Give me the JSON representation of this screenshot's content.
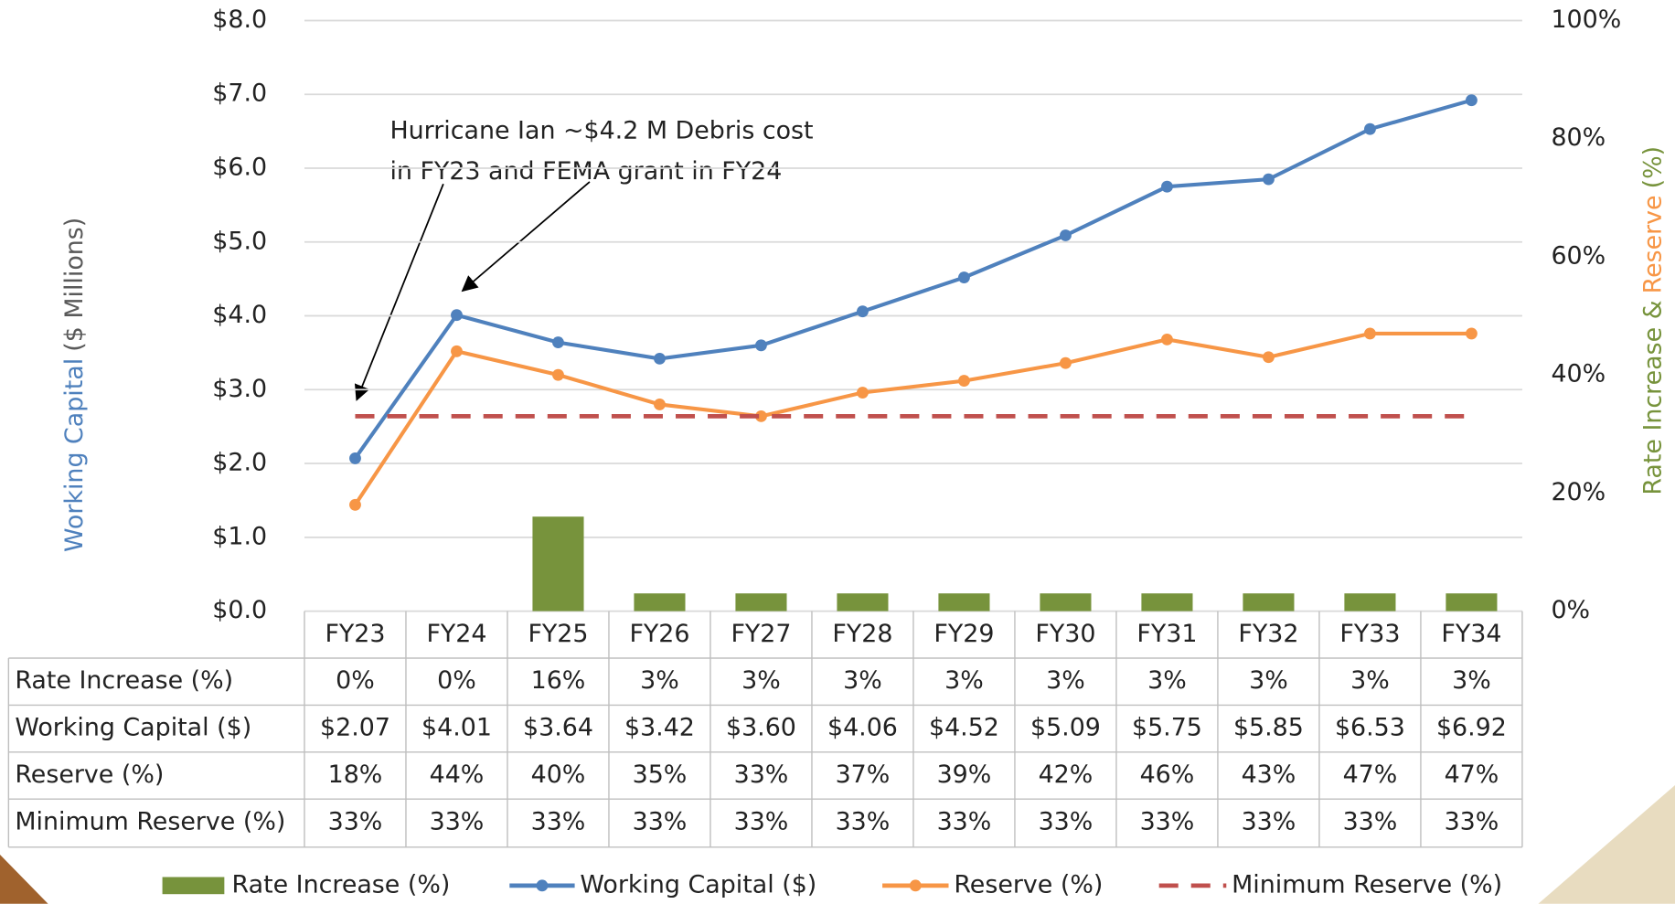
{
  "chart_data": {
    "type": "combo",
    "categories": [
      "FY23",
      "FY24",
      "FY25",
      "FY26",
      "FY27",
      "FY28",
      "FY29",
      "FY30",
      "FY31",
      "FY32",
      "FY33",
      "FY34"
    ],
    "series": [
      {
        "name": "Rate Increase (%)",
        "type": "bar",
        "axis": "y2",
        "color": "#77933c",
        "values": [
          0,
          0,
          16,
          3,
          3,
          3,
          3,
          3,
          3,
          3,
          3,
          3
        ],
        "value_labels": [
          "0%",
          "0%",
          "16%",
          "3%",
          "3%",
          "3%",
          "3%",
          "3%",
          "3%",
          "3%",
          "3%",
          "3%"
        ]
      },
      {
        "name": "Working Capital ($)",
        "type": "line",
        "color": "#4f81bd",
        "values": [
          2.07,
          4.01,
          3.64,
          3.42,
          3.6,
          4.06,
          4.52,
          5.09,
          5.75,
          5.85,
          6.53,
          6.92
        ],
        "value_labels": [
          "$2.07",
          "$4.01",
          "$3.64",
          "$3.42",
          "$3.60",
          "$4.06",
          "$4.52",
          "$5.09",
          "$5.75",
          "$5.85",
          "$6.53",
          "$6.92"
        ]
      },
      {
        "name": "Reserve (%)",
        "type": "line",
        "axis": "y2",
        "color": "#f79646",
        "values": [
          18,
          44,
          40,
          35,
          33,
          37,
          39,
          42,
          46,
          43,
          47,
          47
        ],
        "value_labels": [
          "18%",
          "44%",
          "40%",
          "35%",
          "33%",
          "37%",
          "39%",
          "42%",
          "46%",
          "43%",
          "47%",
          "47%"
        ]
      },
      {
        "name": "Minimum Reserve (%)",
        "type": "line",
        "axis": "y2",
        "color": "#c0504d",
        "dashed": true,
        "values": [
          33,
          33,
          33,
          33,
          33,
          33,
          33,
          33,
          33,
          33,
          33,
          33
        ],
        "value_labels": [
          "33%",
          "33%",
          "33%",
          "33%",
          "33%",
          "33%",
          "33%",
          "33%",
          "33%",
          "33%",
          "33%",
          "33%"
        ]
      }
    ],
    "ylim": [
      0,
      8
    ],
    "yticks": [
      {
        "value": 0,
        "label": "$0.0"
      },
      {
        "value": 1,
        "label": "$1.0"
      },
      {
        "value": 2,
        "label": "$2.0"
      },
      {
        "value": 3,
        "label": "$3.0"
      },
      {
        "value": 4,
        "label": "$4.0"
      },
      {
        "value": 5,
        "label": "$5.0"
      },
      {
        "value": 6,
        "label": "$6.0"
      },
      {
        "value": 7,
        "label": "$7.0"
      },
      {
        "value": 8,
        "label": "$8.0"
      }
    ],
    "y2lim": [
      0,
      100
    ],
    "y2ticks": [
      {
        "value": 0,
        "label": "0%"
      },
      {
        "value": 20,
        "label": "20%"
      },
      {
        "value": 40,
        "label": "40%"
      },
      {
        "value": 60,
        "label": "60%"
      },
      {
        "value": 80,
        "label": "80%"
      },
      {
        "value": 100,
        "label": "100%"
      }
    ],
    "ylabel": [
      "Working Capital",
      "($ Millions)"
    ],
    "y2label": [
      "Rate Increase &",
      "Reserve",
      "(%)"
    ],
    "annotation": [
      "Hurricane Ian ~$4.2 M Debris cost",
      "in FY23 and FEMA grant in FY24"
    ],
    "grid": true
  }
}
